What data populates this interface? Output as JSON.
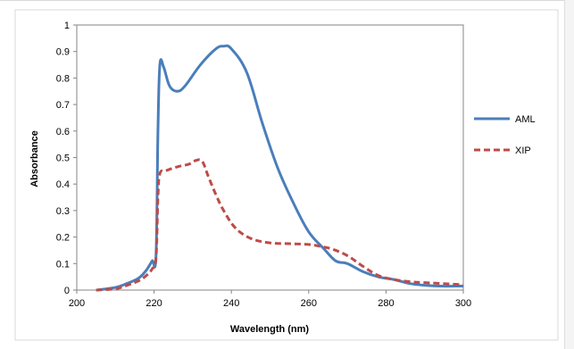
{
  "chart_data": {
    "type": "line",
    "title": "",
    "xlabel": "Wavelength (nm)",
    "ylabel": "Absorbance",
    "xlim": [
      200,
      300
    ],
    "ylim": [
      0,
      1
    ],
    "x_ticks": [
      "200",
      "220",
      "240",
      "260",
      "280",
      "300"
    ],
    "y_ticks": [
      "0",
      "0.1",
      "0.2",
      "0.3",
      "0.4",
      "0.5",
      "0.6",
      "0.7",
      "0.8",
      "0.9",
      "1"
    ],
    "grid": false,
    "legend_position": "right",
    "series": [
      {
        "name": "AML",
        "color": "#4a7ebb",
        "style": "solid",
        "x": [
          205,
          210,
          213,
          216,
          218,
          219.5,
          220.5,
          221,
          221.5,
          222.5,
          224,
          226,
          228,
          232,
          236,
          238,
          240,
          244,
          248,
          252,
          256,
          260,
          264,
          267,
          270,
          274,
          278,
          282,
          286,
          290,
          294,
          298,
          300
        ],
        "y": [
          0,
          0.01,
          0.025,
          0.045,
          0.075,
          0.11,
          0.13,
          0.6,
          0.85,
          0.84,
          0.77,
          0.75,
          0.77,
          0.85,
          0.91,
          0.92,
          0.91,
          0.82,
          0.63,
          0.46,
          0.33,
          0.22,
          0.155,
          0.11,
          0.1,
          0.07,
          0.05,
          0.04,
          0.025,
          0.018,
          0.015,
          0.015,
          0.015
        ]
      },
      {
        "name": "XIP",
        "color": "#be4b48",
        "style": "dashed",
        "x": [
          205,
          210,
          213,
          216,
          218,
          219.5,
          220.5,
          221,
          221.5,
          223,
          226,
          229,
          231,
          232.5,
          234,
          236,
          238,
          241,
          245,
          250,
          255,
          260,
          263,
          266,
          270,
          274,
          278,
          282,
          286,
          290,
          294,
          300
        ],
        "y": [
          0,
          0.005,
          0.018,
          0.035,
          0.055,
          0.08,
          0.12,
          0.35,
          0.44,
          0.45,
          0.465,
          0.475,
          0.49,
          0.485,
          0.43,
          0.36,
          0.3,
          0.235,
          0.195,
          0.178,
          0.175,
          0.172,
          0.165,
          0.155,
          0.13,
          0.09,
          0.055,
          0.04,
          0.032,
          0.028,
          0.025,
          0.02
        ]
      }
    ]
  }
}
